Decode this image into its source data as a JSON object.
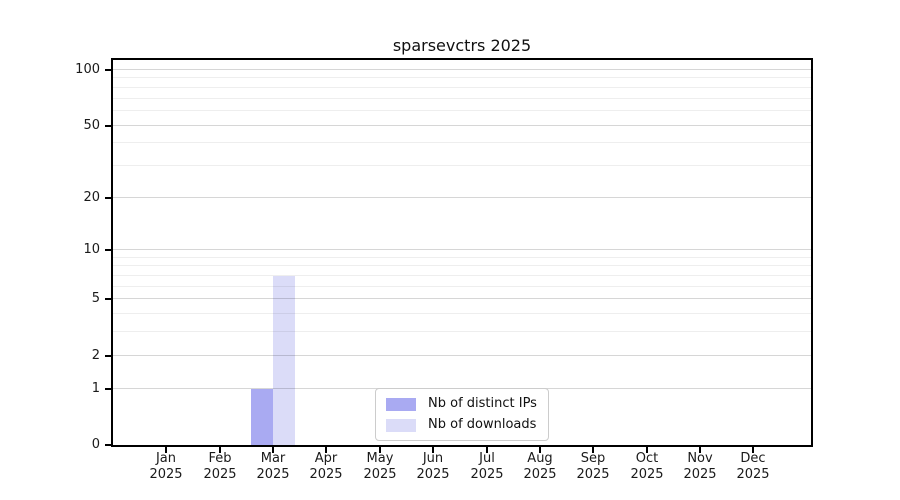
{
  "chart_data": {
    "type": "bar",
    "title": "sparsevctrs 2025",
    "year_label": "2025",
    "categories": [
      "Jan",
      "Feb",
      "Mar",
      "Apr",
      "May",
      "Jun",
      "Jul",
      "Aug",
      "Sep",
      "Oct",
      "Nov",
      "Dec"
    ],
    "series": [
      {
        "name": "Nb of distinct IPs",
        "color": "#a9aaf2",
        "values": [
          0,
          0,
          1,
          0,
          0,
          0,
          0,
          0,
          0,
          0,
          0,
          0
        ]
      },
      {
        "name": "Nb of downloads",
        "color": "#dbdcf8",
        "values": [
          0,
          0,
          7,
          0,
          0,
          0,
          0,
          0,
          0,
          0,
          0,
          0
        ]
      }
    ],
    "xlabel": "",
    "ylabel": "",
    "y_scale": "log1p",
    "ylim": [
      0,
      114
    ],
    "y_ticks": [
      0,
      1,
      2,
      5,
      10,
      20,
      50,
      100
    ],
    "y_minor_ticks": [
      3,
      4,
      6,
      7,
      8,
      9,
      30,
      40,
      60,
      70,
      80,
      90
    ],
    "grid": "horizontal major+minor",
    "legend_position": "inside lower center"
  },
  "colors": {
    "spine": "#000000",
    "major_grid": "rgba(0,0,0,0.16)",
    "minor_grid": "rgba(0,0,0,0.065)",
    "legend_border": "#cccccc",
    "text": "#111111"
  }
}
